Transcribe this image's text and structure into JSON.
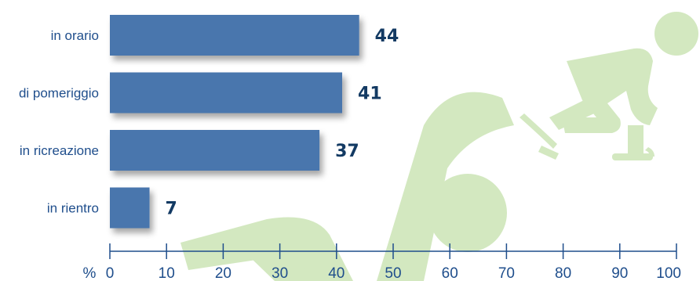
{
  "colors": {
    "bar": "#4a76ad",
    "axis": "#1f4e8c",
    "label": "#1f4e8c",
    "data_label": "#133a63",
    "decoration": "#d3e8c0"
  },
  "decoration": {
    "icons": [
      "skater-icon",
      "player-with-ball-icon"
    ]
  },
  "chart_data": {
    "type": "bar",
    "orientation": "horizontal",
    "title": "",
    "xlabel": "",
    "ylabel": "",
    "unit": "%",
    "categories": [
      "in orario",
      "di pomeriggio",
      "in ricreazione",
      "in rientro"
    ],
    "values": [
      44,
      41,
      37,
      7
    ],
    "data_labels": [
      "44",
      "41",
      "37",
      "7"
    ],
    "xlim": [
      0,
      100
    ],
    "xticks": [
      0,
      10,
      20,
      30,
      40,
      50,
      60,
      70,
      80,
      90,
      100
    ],
    "grid": false,
    "legend": "none"
  }
}
